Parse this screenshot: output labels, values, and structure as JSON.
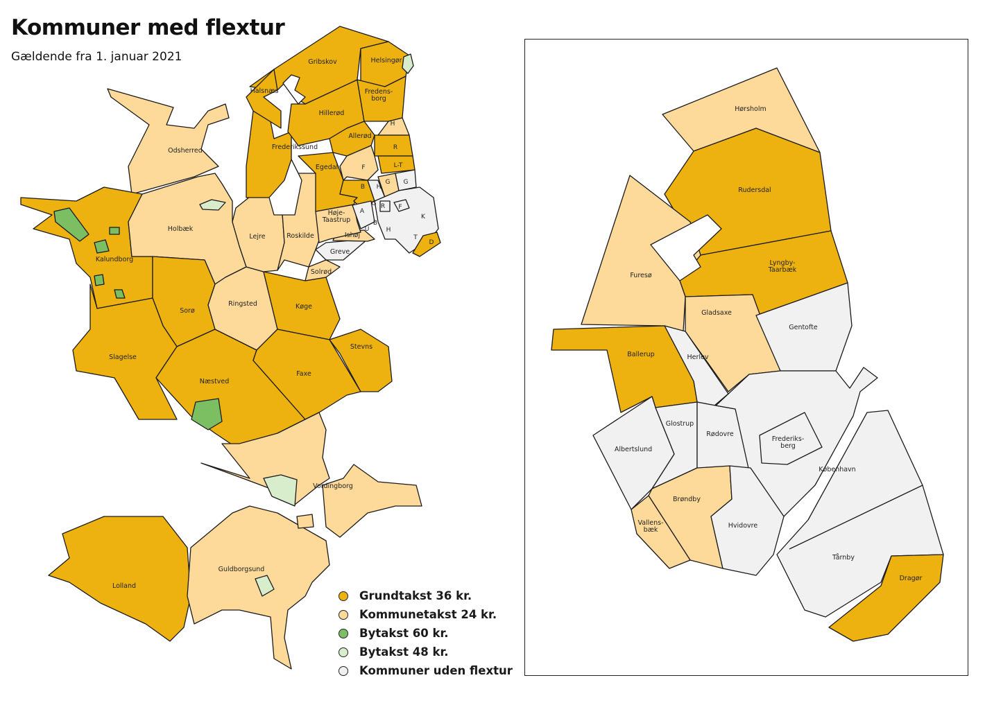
{
  "title": "Kommuner med flextur",
  "subtitle": "Gældende fra 1. januar 2021",
  "colors": {
    "grundtakst": "#EDB110",
    "kommunetakst": "#FDDA9A",
    "bytakst60": "#7CBF62",
    "bytakst48": "#D7EDCC",
    "uden": "#F1F1F1",
    "outline": "#1a1a1a"
  },
  "legend": [
    {
      "key": "grundtakst",
      "label": "Grundtakst 36 kr."
    },
    {
      "key": "kommunetakst",
      "label": "Kommunetakst 24 kr."
    },
    {
      "key": "bytakst60",
      "label": "Bytakst 60 kr."
    },
    {
      "key": "bytakst48",
      "label": "Bytakst 48 kr."
    },
    {
      "key": "uden",
      "label": "Kommuner uden flextur"
    }
  ],
  "main_map": {
    "regions": [
      {
        "name": "Odsherred",
        "category": "kommunetakst"
      },
      {
        "name": "Kalundborg",
        "category": "grundtakst"
      },
      {
        "name": "Holbæk",
        "category": "kommunetakst"
      },
      {
        "name": "Sorø",
        "category": "grundtakst"
      },
      {
        "name": "Slagelse",
        "category": "grundtakst"
      },
      {
        "name": "Næstved",
        "category": "grundtakst"
      },
      {
        "name": "Ringsted",
        "category": "kommunetakst"
      },
      {
        "name": "Køge",
        "category": "grundtakst"
      },
      {
        "name": "Stevns",
        "category": "grundtakst"
      },
      {
        "name": "Faxe",
        "category": "grundtakst"
      },
      {
        "name": "Lejre",
        "category": "kommunetakst"
      },
      {
        "name": "Roskilde",
        "category": "kommunetakst"
      },
      {
        "name": "Solrød",
        "category": "kommunetakst"
      },
      {
        "name": "Greve",
        "category": "uden"
      },
      {
        "name": "Ishøj",
        "category": "kommunetakst"
      },
      {
        "name": "Høje-Taastrup",
        "category": "kommunetakst"
      },
      {
        "name": "Egedal",
        "category": "grundtakst"
      },
      {
        "name": "Frederikssund",
        "category": "grundtakst"
      },
      {
        "name": "Hillerød",
        "category": "grundtakst"
      },
      {
        "name": "Gribskov",
        "category": "grundtakst"
      },
      {
        "name": "Halsnæs",
        "category": "grundtakst"
      },
      {
        "name": "Helsingør",
        "category": "grundtakst"
      },
      {
        "name": "Fredens-borg",
        "category": "grundtakst"
      },
      {
        "name": "Allerød",
        "category": "grundtakst"
      },
      {
        "name": "H",
        "category": "kommunetakst"
      },
      {
        "name": "R",
        "category": "grundtakst"
      },
      {
        "name": "F",
        "category": "kommunetakst"
      },
      {
        "name": "L-T",
        "category": "grundtakst"
      },
      {
        "name": "B",
        "category": "grundtakst"
      },
      {
        "name": "H",
        "category": "uden"
      },
      {
        "name": "G",
        "category": "kommunetakst"
      },
      {
        "name": "G",
        "category": "uden"
      },
      {
        "name": "K",
        "category": "uden"
      },
      {
        "name": "A",
        "category": "uden"
      },
      {
        "name": "D",
        "category": "grundtakst"
      },
      {
        "name": "Vordingborg",
        "category": "kommunetakst"
      },
      {
        "name": "Lolland",
        "category": "grundtakst"
      },
      {
        "name": "Guldborgsund",
        "category": "kommunetakst"
      }
    ],
    "small_labels": [
      "G",
      "R",
      "F",
      "U",
      "B",
      "H",
      "T"
    ]
  },
  "inset_map": {
    "regions": [
      {
        "name": "Hørsholm",
        "category": "kommunetakst"
      },
      {
        "name": "Rudersdal",
        "category": "grundtakst"
      },
      {
        "name": "Lyngby-Taarbæk",
        "category": "grundtakst"
      },
      {
        "name": "Furesø",
        "category": "kommunetakst"
      },
      {
        "name": "Gladsaxe",
        "category": "kommunetakst"
      },
      {
        "name": "Gentofte",
        "category": "uden"
      },
      {
        "name": "Herlev",
        "category": "uden"
      },
      {
        "name": "Ballerup",
        "category": "grundtakst"
      },
      {
        "name": "Albertslund",
        "category": "uden"
      },
      {
        "name": "Glostrup",
        "category": "uden"
      },
      {
        "name": "Rødovre",
        "category": "uden"
      },
      {
        "name": "København",
        "category": "uden"
      },
      {
        "name": "Frederiks-berg",
        "category": "uden"
      },
      {
        "name": "Brøndby",
        "category": "kommunetakst"
      },
      {
        "name": "Vallens-bæk",
        "category": "kommunetakst"
      },
      {
        "name": "Hvidovre",
        "category": "uden"
      },
      {
        "name": "Tårnby",
        "category": "uden"
      },
      {
        "name": "Dragør",
        "category": "grundtakst"
      }
    ]
  }
}
